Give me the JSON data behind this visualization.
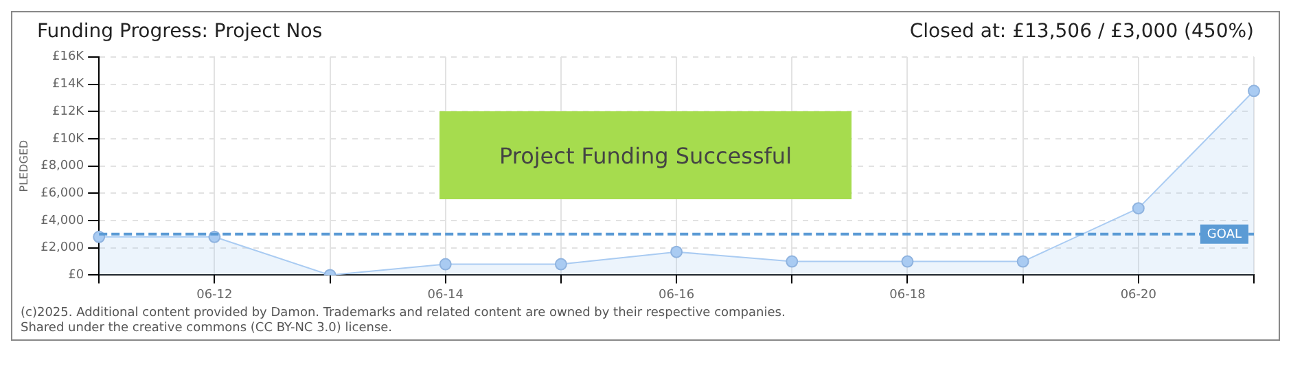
{
  "chart_data": {
    "type": "area",
    "title": "Funding Progress: Project Nos",
    "subtitle": "Closed at:  £13,506 / £3,000 (450%)",
    "ylabel": "PLEDGED",
    "categories": [
      null,
      "06-12",
      null,
      "06-14",
      null,
      "06-16",
      null,
      "06-18",
      null,
      "06-20",
      null
    ],
    "series": [
      {
        "color": "#a9cbf2",
        "values": [
          2800,
          2800,
          0,
          800,
          800,
          1700,
          1000,
          1000,
          1000,
          4900,
          13506
        ]
      }
    ],
    "ylim": [
      0,
      16000
    ],
    "yticks": [
      {
        "value": 0,
        "label": "£0"
      },
      {
        "value": 2000,
        "label": "£2,000"
      },
      {
        "value": 4000,
        "label": "£4,000"
      },
      {
        "value": 6000,
        "label": "£6,000"
      },
      {
        "value": 8000,
        "label": "£8,000"
      },
      {
        "value": 10000,
        "label": "£10K"
      },
      {
        "value": 12000,
        "label": "£12K"
      },
      {
        "value": 14000,
        "label": "£14K"
      },
      {
        "value": 16000,
        "label": "£16K"
      }
    ],
    "grid": true,
    "marker": "circle",
    "line_style": "solid",
    "ref_lines": [
      {
        "axis": "y",
        "value": 3000,
        "label": "GOAL",
        "color": "#5b9bd5",
        "line_style": "dashed"
      }
    ],
    "annotations": [
      "Project Funding Successful",
      "(c)2025. Additional content provided by Damon. Trademarks and related content are owned by their respective companies.",
      "Shared under the creative commons (CC BY-NC 3.0) license."
    ]
  }
}
